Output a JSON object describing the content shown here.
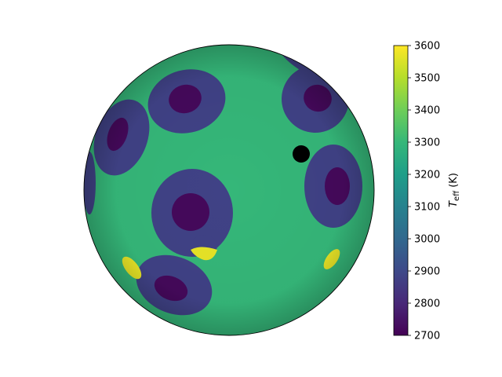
{
  "chart_data": {
    "type": "heatmap",
    "subject": "stellar surface temperature map on a sphere",
    "colormap": "viridis",
    "colormap_stops": [
      "#440154",
      "#482878",
      "#3e4989",
      "#31688e",
      "#26828e",
      "#1f9e89",
      "#35b779",
      "#6ece58",
      "#b5de2b",
      "#fde725"
    ],
    "colorbar": {
      "label_main": "T",
      "label_sub": "eff",
      "label_unit": " (K)",
      "vmin": 2700,
      "vmax": 3600,
      "ticks": [
        "2700",
        "2800",
        "2900",
        "3000",
        "3100",
        "3200",
        "3300",
        "3400",
        "3500",
        "3600"
      ]
    },
    "surface": {
      "photosphere_teff": 3300,
      "penumbra_teff": 2880,
      "umbra_teff": 2720,
      "facula_teff": 3570,
      "planet_color": "#000000"
    },
    "grid": false,
    "legend": "none"
  }
}
